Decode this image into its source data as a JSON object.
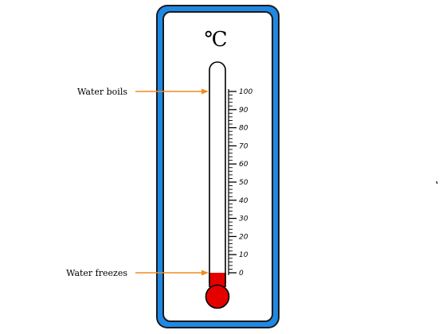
{
  "thermometer": {
    "unit": "℃",
    "scale_min": 0,
    "scale_max": 100,
    "major_ticks": [
      0,
      10,
      20,
      30,
      40,
      50,
      60,
      70,
      80,
      90,
      100
    ],
    "labels": [
      "0",
      "10",
      "20",
      "30",
      "40",
      "50",
      "60",
      "70",
      "80",
      "90",
      "100"
    ],
    "mercury_level": 0,
    "annotations": [
      {
        "text": "Water boils",
        "value": 100
      },
      {
        "text": "Water freezes",
        "value": 0
      }
    ]
  },
  "colors": {
    "frame_outer": "#1a1a1a",
    "frame_blue": "#1e88e5",
    "frame_inner": "#ffffff",
    "mercury": "#e50000",
    "arrow": "#f28a1e",
    "ink": "#000000"
  }
}
